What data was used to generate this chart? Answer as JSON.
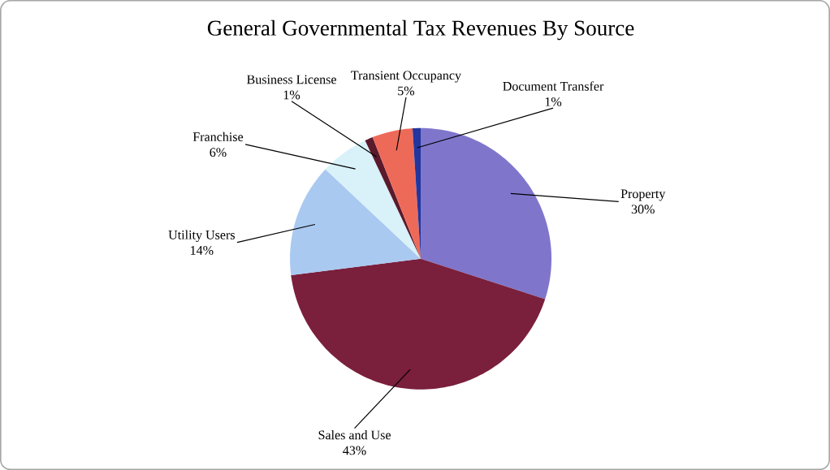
{
  "chart_data": {
    "type": "pie",
    "title": "General Governmental Tax Revenues By Source",
    "categories": [
      "Property",
      "Sales and Use",
      "Utility Users",
      "Franchise",
      "Business License",
      "Transient Occupancy",
      "Document Transfer"
    ],
    "values": [
      30,
      43,
      14,
      6,
      1,
      5,
      1
    ],
    "value_labels": [
      "30%",
      "43%",
      "14%",
      "6%",
      "1%",
      "5%",
      "1%"
    ],
    "colors": [
      "#7f76cc",
      "#7a1f3c",
      "#a9c9f0",
      "#d9f1f8",
      "#5a1a2c",
      "#ee6a58",
      "#23359e"
    ]
  }
}
